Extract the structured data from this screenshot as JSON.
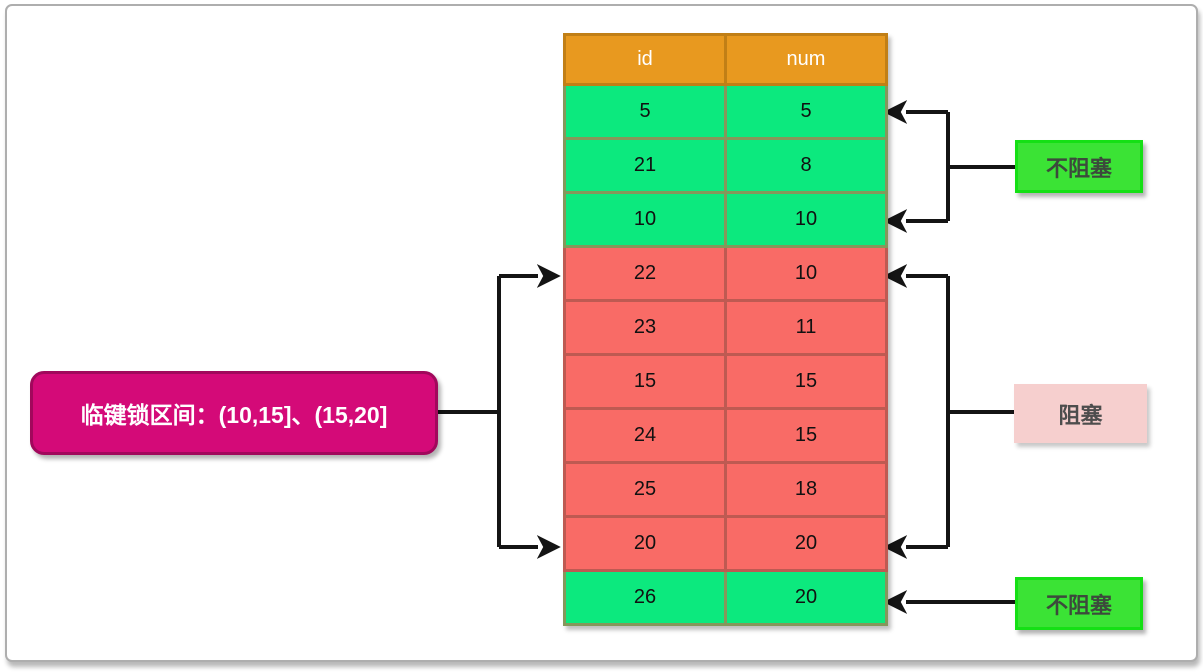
{
  "table": {
    "columns": [
      "id",
      "num"
    ],
    "rows": [
      {
        "id": "5",
        "num": "5",
        "state": "green"
      },
      {
        "id": "21",
        "num": "8",
        "state": "green"
      },
      {
        "id": "10",
        "num": "10",
        "state": "green"
      },
      {
        "id": "22",
        "num": "10",
        "state": "red"
      },
      {
        "id": "23",
        "num": "11",
        "state": "red"
      },
      {
        "id": "15",
        "num": "15",
        "state": "red"
      },
      {
        "id": "24",
        "num": "15",
        "state": "red"
      },
      {
        "id": "25",
        "num": "18",
        "state": "red"
      },
      {
        "id": "20",
        "num": "20",
        "state": "red"
      },
      {
        "id": "26",
        "num": "20",
        "state": "green"
      }
    ]
  },
  "labels": {
    "lock_range": "临键锁区间：(10,15]、(15,20]",
    "non_blocking_top": "不阻塞",
    "blocking": "阻塞",
    "non_blocking_bottom": "不阻塞"
  },
  "colors": {
    "header_bg": "#E8991F",
    "header_border": "#C17F16",
    "green_row_bg": "#0CE97E",
    "green_row_border": "#85975B",
    "red_row_bg": "#F96B66",
    "red_row_border": "#BE5A52",
    "lock_box_bg": "#D40A78",
    "lock_box_border": "#A1085C",
    "green_label_bg": "#3BE335",
    "green_label_border": "#15E015",
    "pink_label_bg": "#F6CFCE",
    "arrow": "#141414"
  }
}
